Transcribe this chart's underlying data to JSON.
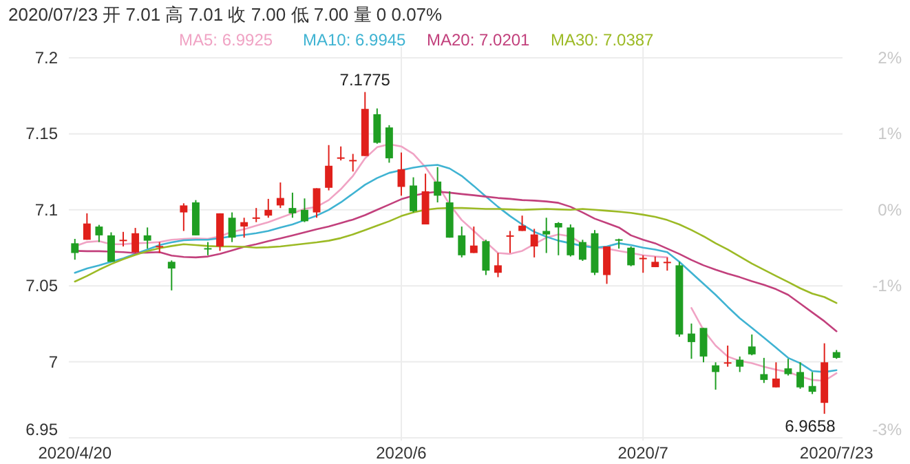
{
  "chart_data": {
    "type": "candlestick",
    "title": "2020/07/23 开 7.01 高 7.01 收 7.00 低 7.00 量 0 0.07%",
    "categories": [
      "2020/4/20",
      null,
      null,
      null,
      null,
      null,
      null,
      null,
      null,
      null,
      null,
      null,
      null,
      null,
      null,
      null,
      null,
      null,
      null,
      null,
      null,
      null,
      null,
      null,
      null,
      null,
      null,
      "2020/6",
      null,
      null,
      null,
      null,
      null,
      null,
      null,
      null,
      null,
      null,
      null,
      null,
      null,
      null,
      null,
      null,
      null,
      null,
      null,
      "2020/7",
      null,
      null,
      null,
      null,
      null,
      null,
      null,
      null,
      null,
      null,
      null,
      null,
      null,
      null,
      null,
      "2020/7/23"
    ],
    "ohlc": [
      [
        7.078,
        7.0809,
        7.0672,
        7.0716
      ],
      [
        7.0803,
        7.0977,
        7.0803,
        7.091
      ],
      [
        7.089,
        7.0901,
        7.0788,
        7.0832
      ],
      [
        7.0832,
        7.0852,
        7.0658,
        7.0658
      ],
      [
        7.08,
        7.0855,
        7.0759,
        7.0803
      ],
      [
        7.0722,
        7.0881,
        7.0716,
        7.0846
      ],
      [
        7.0832,
        7.0884,
        7.0745,
        7.0797
      ],
      [
        7.0758,
        7.0788,
        7.0716,
        7.0762
      ],
      [
        7.0658,
        7.0667,
        7.047,
        7.0614
      ],
      [
        7.0983,
        7.1043,
        7.0861,
        7.1029
      ],
      [
        7.1049,
        7.1064,
        7.0832,
        7.0832
      ],
      [
        7.0748,
        7.0788,
        7.0701,
        7.0742
      ],
      [
        7.0759,
        7.0977,
        7.073,
        7.0977
      ],
      [
        7.0948,
        7.0983,
        7.0788,
        7.0817
      ],
      [
        7.089,
        7.0948,
        7.0817,
        7.0919
      ],
      [
        7.0945,
        7.1012,
        7.0919,
        7.095
      ],
      [
        7.0962,
        7.1072,
        7.0948,
        7.1
      ],
      [
        7.1029,
        7.118,
        7.1012,
        7.1078
      ],
      [
        7.1012,
        7.1113,
        7.0948,
        7.0977
      ],
      [
        7.1,
        7.1075,
        7.0919,
        7.0925
      ],
      [
        7.0983,
        7.1142,
        7.0948,
        7.1142
      ],
      [
        7.1145,
        7.1426,
        7.1128,
        7.129
      ],
      [
        7.1342,
        7.1417,
        7.1325,
        7.1345
      ],
      [
        7.1322,
        7.1368,
        7.1252,
        7.1328
      ],
      [
        7.1354,
        7.1775,
        7.1354,
        7.1664
      ],
      [
        7.1629,
        7.1667,
        7.1435,
        7.1441
      ],
      [
        7.1542,
        7.1557,
        7.131,
        7.1339
      ],
      [
        7.1151,
        7.1377,
        7.1093,
        7.1267
      ],
      [
        7.116,
        7.1214,
        7.0983,
        7.0991
      ],
      [
        7.0904,
        7.1238,
        7.0904,
        7.1122
      ],
      [
        7.1186,
        7.1281,
        7.1049,
        7.1093
      ],
      [
        7.1049,
        7.1122,
        7.0817,
        7.0817
      ],
      [
        7.0832,
        7.089,
        7.0687,
        7.0701
      ],
      [
        7.0716,
        7.089,
        7.0716,
        7.0765
      ],
      [
        7.0794,
        7.0803,
        7.0571,
        7.06
      ],
      [
        7.0586,
        7.0716,
        7.0557,
        7.0635
      ],
      [
        7.0829,
        7.0861,
        7.0716,
        7.0832
      ],
      [
        7.0861,
        7.0962,
        7.0861,
        7.0896
      ],
      [
        7.0759,
        7.0875,
        7.0687,
        7.0838
      ],
      [
        7.0861,
        7.0948,
        7.0716,
        7.0838
      ],
      [
        7.0913,
        7.0919,
        7.0701,
        7.0884
      ],
      [
        7.0884,
        7.0904,
        7.0693,
        7.0701
      ],
      [
        7.0788,
        7.0803,
        7.0664,
        7.0672
      ],
      [
        7.0846,
        7.0867,
        7.0571,
        7.0586
      ],
      [
        7.0571,
        7.0759,
        7.0513,
        7.0759
      ],
      [
        7.0806,
        7.081,
        7.0745,
        7.08
      ],
      [
        7.0751,
        7.0759,
        7.0629,
        7.0635
      ],
      [
        7.0678,
        7.0701,
        7.0586,
        7.0684
      ],
      [
        7.0623,
        7.0693,
        7.0623,
        7.0658
      ],
      [
        7.0655,
        7.0687,
        7.06,
        7.0658
      ],
      [
        7.0635,
        7.0658,
        7.0165,
        7.018
      ],
      [
        7.0186,
        7.0252,
        7.002,
        7.013
      ],
      [
        7.0223,
        7.0223,
        6.9997,
        7.0035
      ],
      [
        6.9977,
        6.9997,
        6.9817,
        6.9933
      ],
      [
        6.9994,
        7.0107,
        6.9968,
        6.9997
      ],
      [
        7.0014,
        7.0035,
        6.9933,
        6.9968
      ],
      [
        7.0101,
        7.018,
        7.0043,
        7.0049
      ],
      [
        6.9919,
        7.0026,
        6.9861,
        6.9881
      ],
      [
        6.9832,
        6.9997,
        6.9832,
        6.989
      ],
      [
        6.9957,
        7.002,
        6.991,
        6.9919
      ],
      [
        6.9933,
        6.9997,
        6.9823,
        6.9832
      ],
      [
        6.9841,
        6.9933,
        6.9788,
        6.9803
      ],
      [
        6.973,
        7.0122,
        6.9658,
        6.9997
      ],
      [
        7.0064,
        7.0078,
        7.002,
        7.0026
      ]
    ],
    "series": [
      {
        "name": "MA5: 6.9925",
        "type": "line",
        "color": "#f0a3c4",
        "values": [
          7.076,
          7.0788,
          7.0794,
          7.0774,
          7.0774,
          7.078,
          7.0783,
          7.0788,
          7.0803,
          7.0809,
          7.0812,
          7.0809,
          7.0826,
          7.0855,
          7.0872,
          7.0896,
          7.0919,
          7.0948,
          7.0977,
          7.1006,
          7.102,
          7.1064,
          7.1136,
          7.1223,
          7.1339,
          7.1412,
          7.1432,
          7.1417,
          7.1368,
          7.1281,
          7.1165,
          7.1035,
          7.0933,
          7.0861,
          7.0788,
          7.0716,
          7.071,
          7.073,
          7.0774,
          7.0817,
          7.0838,
          7.0826,
          7.0774,
          7.0751,
          7.0745,
          7.073,
          7.0716,
          7.0701,
          7.0693,
          7.0687,
          null,
          7.0354,
          7.0209,
          7.0107,
          7.0035,
          7.0006,
          6.9991,
          6.9968,
          6.9948,
          6.9933,
          6.9904,
          6.9881,
          6.9875,
          6.9925
        ]
      },
      {
        "name": "MA10: 6.9945",
        "type": "line",
        "color": "#3fb3d2",
        "values": [
          7.0586,
          7.0614,
          7.0635,
          7.0658,
          7.0681,
          7.071,
          7.0739,
          7.0768,
          7.0786,
          7.08,
          7.0803,
          7.0803,
          7.0814,
          7.0826,
          7.0835,
          7.0846,
          7.0861,
          7.0884,
          7.0904,
          7.0933,
          7.0962,
          7.1,
          7.1049,
          7.1107,
          7.1165,
          7.1209,
          7.1243,
          7.1261,
          7.1278,
          7.129,
          7.1296,
          7.1272,
          7.1223,
          7.1157,
          7.1087,
          7.102,
          7.0959,
          7.0904,
          7.0855,
          7.0823,
          7.0797,
          7.078,
          7.0762,
          7.0751,
          7.0759,
          7.078,
          7.0768,
          7.0751,
          7.0739,
          7.0722,
          7.0658,
          7.0586,
          7.0513,
          7.0441,
          7.0362,
          7.0287,
          7.0223,
          7.0159,
          7.0093,
          7.0026,
          6.9991,
          6.9939,
          6.9933,
          6.9945
        ]
      },
      {
        "name": "MA20: 7.0201",
        "type": "line",
        "color": "#c2407c",
        "values": [
          7.073,
          7.0728,
          7.0728,
          7.0725,
          7.0722,
          7.0716,
          7.0719,
          7.0722,
          7.0699,
          7.069,
          7.0687,
          7.0693,
          7.071,
          7.0733,
          7.0757,
          7.0774,
          7.0794,
          7.0812,
          7.0832,
          7.0852,
          7.0872,
          7.089,
          7.0913,
          7.0936,
          7.0965,
          7.1,
          7.1035,
          7.107,
          7.1093,
          7.111,
          7.1119,
          7.1113,
          7.1104,
          7.1096,
          7.1087,
          7.1078,
          7.1072,
          7.1064,
          7.1061,
          7.1055,
          7.1046,
          7.102,
          7.0983,
          7.0942,
          7.0913,
          7.0884,
          7.0832,
          7.0803,
          7.078,
          7.0745,
          7.071,
          7.067,
          7.0635,
          7.0606,
          7.058,
          7.0557,
          7.053,
          7.0507,
          7.0478,
          7.0441,
          7.0383,
          7.0325,
          7.0267,
          7.0201
        ]
      },
      {
        "name": "MA30: 7.0387",
        "type": "line",
        "color": "#9cba25",
        "values": [
          7.0528,
          7.0565,
          7.0606,
          7.0643,
          7.0675,
          7.0704,
          7.0728,
          7.0748,
          7.0762,
          7.0774,
          7.0768,
          7.0762,
          7.0759,
          7.0759,
          7.0757,
          7.0751,
          7.0754,
          7.0759,
          7.0768,
          7.0777,
          7.0786,
          7.0797,
          7.0814,
          7.0838,
          7.0867,
          7.0896,
          7.0925,
          7.0959,
          7.0983,
          7.1,
          7.1009,
          7.1012,
          7.1012,
          7.1009,
          7.1006,
          7.1006,
          7.1003,
          7.1,
          7.1003,
          7.1006,
          7.1003,
          7.1,
          7.1006,
          7.1,
          7.0994,
          7.0988,
          7.098,
          7.0968,
          7.0954,
          7.0933,
          7.0904,
          7.0867,
          7.0826,
          7.078,
          7.0739,
          7.0693,
          7.0646,
          7.0606,
          7.0565,
          7.0525,
          7.0484,
          7.0449,
          7.0426,
          7.0387
        ]
      }
    ],
    "ylim": [
      6.95,
      7.2
    ],
    "yticks": [
      6.95,
      7,
      7.05,
      7.1,
      7.15,
      7.2
    ],
    "y2lim": [
      -3,
      2
    ],
    "y2ticks": [
      {
        "value": 2,
        "label": "2%"
      },
      {
        "value": 1,
        "label": "1%"
      },
      {
        "value": 0,
        "label": "0%"
      },
      {
        "value": -1,
        "label": "-1%"
      },
      {
        "value": -3,
        "label": "-3%"
      }
    ],
    "grid": true,
    "legend": "top",
    "annotations": [
      {
        "text": "7.1775",
        "y": 7.1775
      },
      "6.9658"
    ]
  }
}
